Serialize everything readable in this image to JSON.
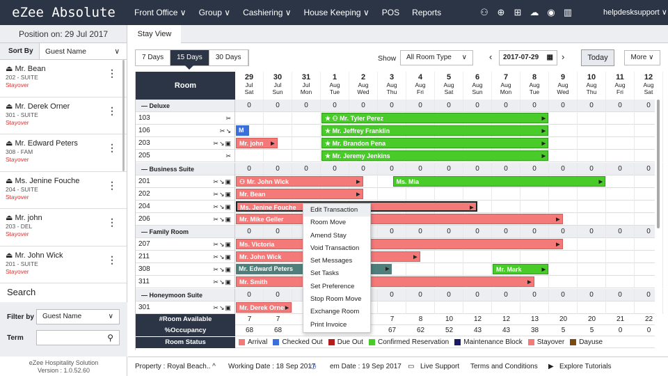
{
  "app": {
    "brand": "eZee Absolute",
    "user": "helpdesksupport ∨"
  },
  "nav": [
    "Front Office ∨",
    "Group ∨",
    "Cashiering ∨",
    "House Keeping ∨",
    "POS",
    "Reports"
  ],
  "left": {
    "position": "Position on: 29 Jul 2017",
    "sort_label": "Sort By",
    "sort_value": "Guest Name",
    "guests": [
      {
        "name": "Mr. Bean",
        "room": "202 - SUITE",
        "status": "Stayover"
      },
      {
        "name": "Mr. Derek Orner",
        "room": "301 - SUITE",
        "status": "Stayover"
      },
      {
        "name": "Mr. Edward Peters",
        "room": "308 - FAM",
        "status": "Stayover"
      },
      {
        "name": "Ms. Jenine Fouche",
        "room": "204 - SUITE",
        "status": "Stayover"
      },
      {
        "name": "Mr. john",
        "room": "203 - DEL",
        "status": "Stayover"
      },
      {
        "name": "Mr. John Wick",
        "room": "201 - SUITE",
        "status": "Stayover"
      }
    ],
    "search_title": "Search",
    "filter_label": "Filter by",
    "filter_value": "Guest Name",
    "term_label": "Term",
    "company": "eZee Hospitality Solution",
    "version": "Version : 1.0.52.60"
  },
  "tab": "Stay View",
  "toolbar": {
    "days": [
      "7 Days",
      "15 Days",
      "30 Days"
    ],
    "show_label": "Show",
    "show_value": "All Room Type",
    "date": "2017-07-29",
    "today": "Today",
    "more": "More ∨"
  },
  "grid": {
    "room_header": "Room",
    "dates": [
      {
        "d": "29",
        "m": "Jul",
        "w": "Sat"
      },
      {
        "d": "30",
        "m": "Jul",
        "w": "Sun"
      },
      {
        "d": "31",
        "m": "Jul",
        "w": "Mon"
      },
      {
        "d": "1",
        "m": "Aug",
        "w": "Tue"
      },
      {
        "d": "2",
        "m": "Aug",
        "w": "Wed"
      },
      {
        "d": "3",
        "m": "Aug",
        "w": "Thu"
      },
      {
        "d": "4",
        "m": "Aug",
        "w": "Fri"
      },
      {
        "d": "5",
        "m": "Aug",
        "w": "Sat"
      },
      {
        "d": "6",
        "m": "Aug",
        "w": "Sun"
      },
      {
        "d": "7",
        "m": "Aug",
        "w": "Mon"
      },
      {
        "d": "8",
        "m": "Aug",
        "w": "Tue"
      },
      {
        "d": "9",
        "m": "Aug",
        "w": "Wed"
      },
      {
        "d": "10",
        "m": "Aug",
        "w": "Thu"
      },
      {
        "d": "11",
        "m": "Aug",
        "w": "Fri"
      },
      {
        "d": "12",
        "m": "Aug",
        "w": "Sat"
      }
    ],
    "rows": [
      {
        "type": "cat",
        "label": "— Deluxe"
      },
      {
        "type": "room",
        "label": "103",
        "icons": "✂"
      },
      {
        "type": "room",
        "label": "106",
        "icons": "✂↘"
      },
      {
        "type": "room",
        "label": "203",
        "icons": "✂↘▣"
      },
      {
        "type": "room",
        "label": "205",
        "icons": "✂"
      },
      {
        "type": "cat",
        "label": "— Business Suite"
      },
      {
        "type": "room",
        "label": "201",
        "icons": "✂↘▣"
      },
      {
        "type": "room",
        "label": "202",
        "icons": "✂↘▣"
      },
      {
        "type": "room",
        "label": "204",
        "icons": "✂↘▣"
      },
      {
        "type": "room",
        "label": "206",
        "icons": "✂↘▣"
      },
      {
        "type": "cat",
        "label": "— Family Room"
      },
      {
        "type": "room",
        "label": "207",
        "icons": "✂↘▣"
      },
      {
        "type": "room",
        "label": "211",
        "icons": "✂↘▣"
      },
      {
        "type": "room",
        "label": "308",
        "icons": "✂↘▣"
      },
      {
        "type": "room",
        "label": "311",
        "icons": "✂↘▣"
      },
      {
        "type": "cat",
        "label": "— Honeymoon Suite"
      },
      {
        "type": "room",
        "label": "301",
        "icons": "✂↘▣"
      }
    ],
    "cat_zero": "0",
    "bookings": [
      {
        "row": 1,
        "start": 3,
        "span": 8,
        "color": "green",
        "text": "★ ⚇ Mr. Tyler Perez"
      },
      {
        "row": 2,
        "start": 0,
        "span": 0.5,
        "color": "blue",
        "text": "M"
      },
      {
        "row": 2,
        "start": 3,
        "span": 8,
        "color": "green",
        "text": "★ Mr. Jeffrey Franklin"
      },
      {
        "row": 3,
        "start": 0,
        "span": 1.5,
        "color": "red",
        "text": "Mr. john"
      },
      {
        "row": 3,
        "start": 3,
        "span": 8,
        "color": "green",
        "text": "★ Mr. Brandon Pena"
      },
      {
        "row": 4,
        "start": 3,
        "span": 8,
        "color": "green",
        "text": "★ Mr. Jeremy Jenkins"
      },
      {
        "row": 6,
        "start": 0,
        "span": 4.5,
        "color": "red",
        "text": "⚇ Mr. John Wick"
      },
      {
        "row": 6,
        "start": 5.5,
        "span": 7.5,
        "color": "green",
        "text": "Ms. Mia"
      },
      {
        "row": 7,
        "start": 0,
        "span": 4.5,
        "color": "red",
        "text": "Mr. Bean"
      },
      {
        "row": 8,
        "start": 0,
        "span": 8.5,
        "color": "red",
        "text": "Ms. Jenine Fouche",
        "sel": true
      },
      {
        "row": 9,
        "start": 0,
        "span": 11.5,
        "color": "red",
        "text": "Mr. Mike Geller"
      },
      {
        "row": 11,
        "start": 0,
        "span": 11.5,
        "color": "red",
        "text": "Ms. Victoria"
      },
      {
        "row": 12,
        "start": 0,
        "span": 6.5,
        "color": "red",
        "text": "Mr. John Wick"
      },
      {
        "row": 13,
        "start": 0,
        "span": 5.5,
        "color": "teal",
        "text": "Mr. Edward Peters"
      },
      {
        "row": 13,
        "start": 9,
        "span": 2,
        "color": "green",
        "text": "Mr. Mark"
      },
      {
        "row": 14,
        "start": 0,
        "span": 10.5,
        "color": "red",
        "text": "Mr. Smith"
      },
      {
        "row": 16,
        "start": 0,
        "span": 2,
        "color": "red",
        "text": "Mr. Derek Orner"
      }
    ],
    "available_label": "#Room Available",
    "available": [
      "7",
      "7",
      "",
      "",
      "",
      "7",
      "8",
      "10",
      "12",
      "12",
      "13",
      "20",
      "20",
      "21",
      "22"
    ],
    "occupancy_label": "%Occupancy",
    "occupancy": [
      "68",
      "68",
      "",
      "",
      "",
      "67",
      "62",
      "52",
      "43",
      "43",
      "38",
      "5",
      "5",
      "0",
      "0"
    ],
    "status_label": "Room Status",
    "legend": [
      {
        "label": "Arrival",
        "color": "#f47a7a"
      },
      {
        "label": "Checked Out",
        "color": "#3b6fd9"
      },
      {
        "label": "Due Out",
        "color": "#b71c1c"
      },
      {
        "label": "Confirmed Reservation",
        "color": "#49cc2a"
      },
      {
        "label": "Maintenance Block",
        "color": "#1a1a66"
      },
      {
        "label": "Stayover",
        "color": "#f47a7a"
      },
      {
        "label": "Dayuse",
        "color": "#7a4a10"
      }
    ]
  },
  "context_menu": [
    "Edit Transaction",
    "Room Move",
    "Amend Stay",
    "Void Transaction",
    "Set Messages",
    "Set Tasks",
    "Set Preference",
    "Stop Room Move",
    "Exchange Room",
    "Print Invoice"
  ],
  "footer": {
    "property": "Property : Royal Beach.. ^",
    "working_date": "Working Date : 18 Sep 2017",
    "system_date": "em Date : 19 Sep 2017",
    "live_support": "Live Support",
    "terms": "Terms and Conditions",
    "tutorials": "Explore Tutorials"
  }
}
